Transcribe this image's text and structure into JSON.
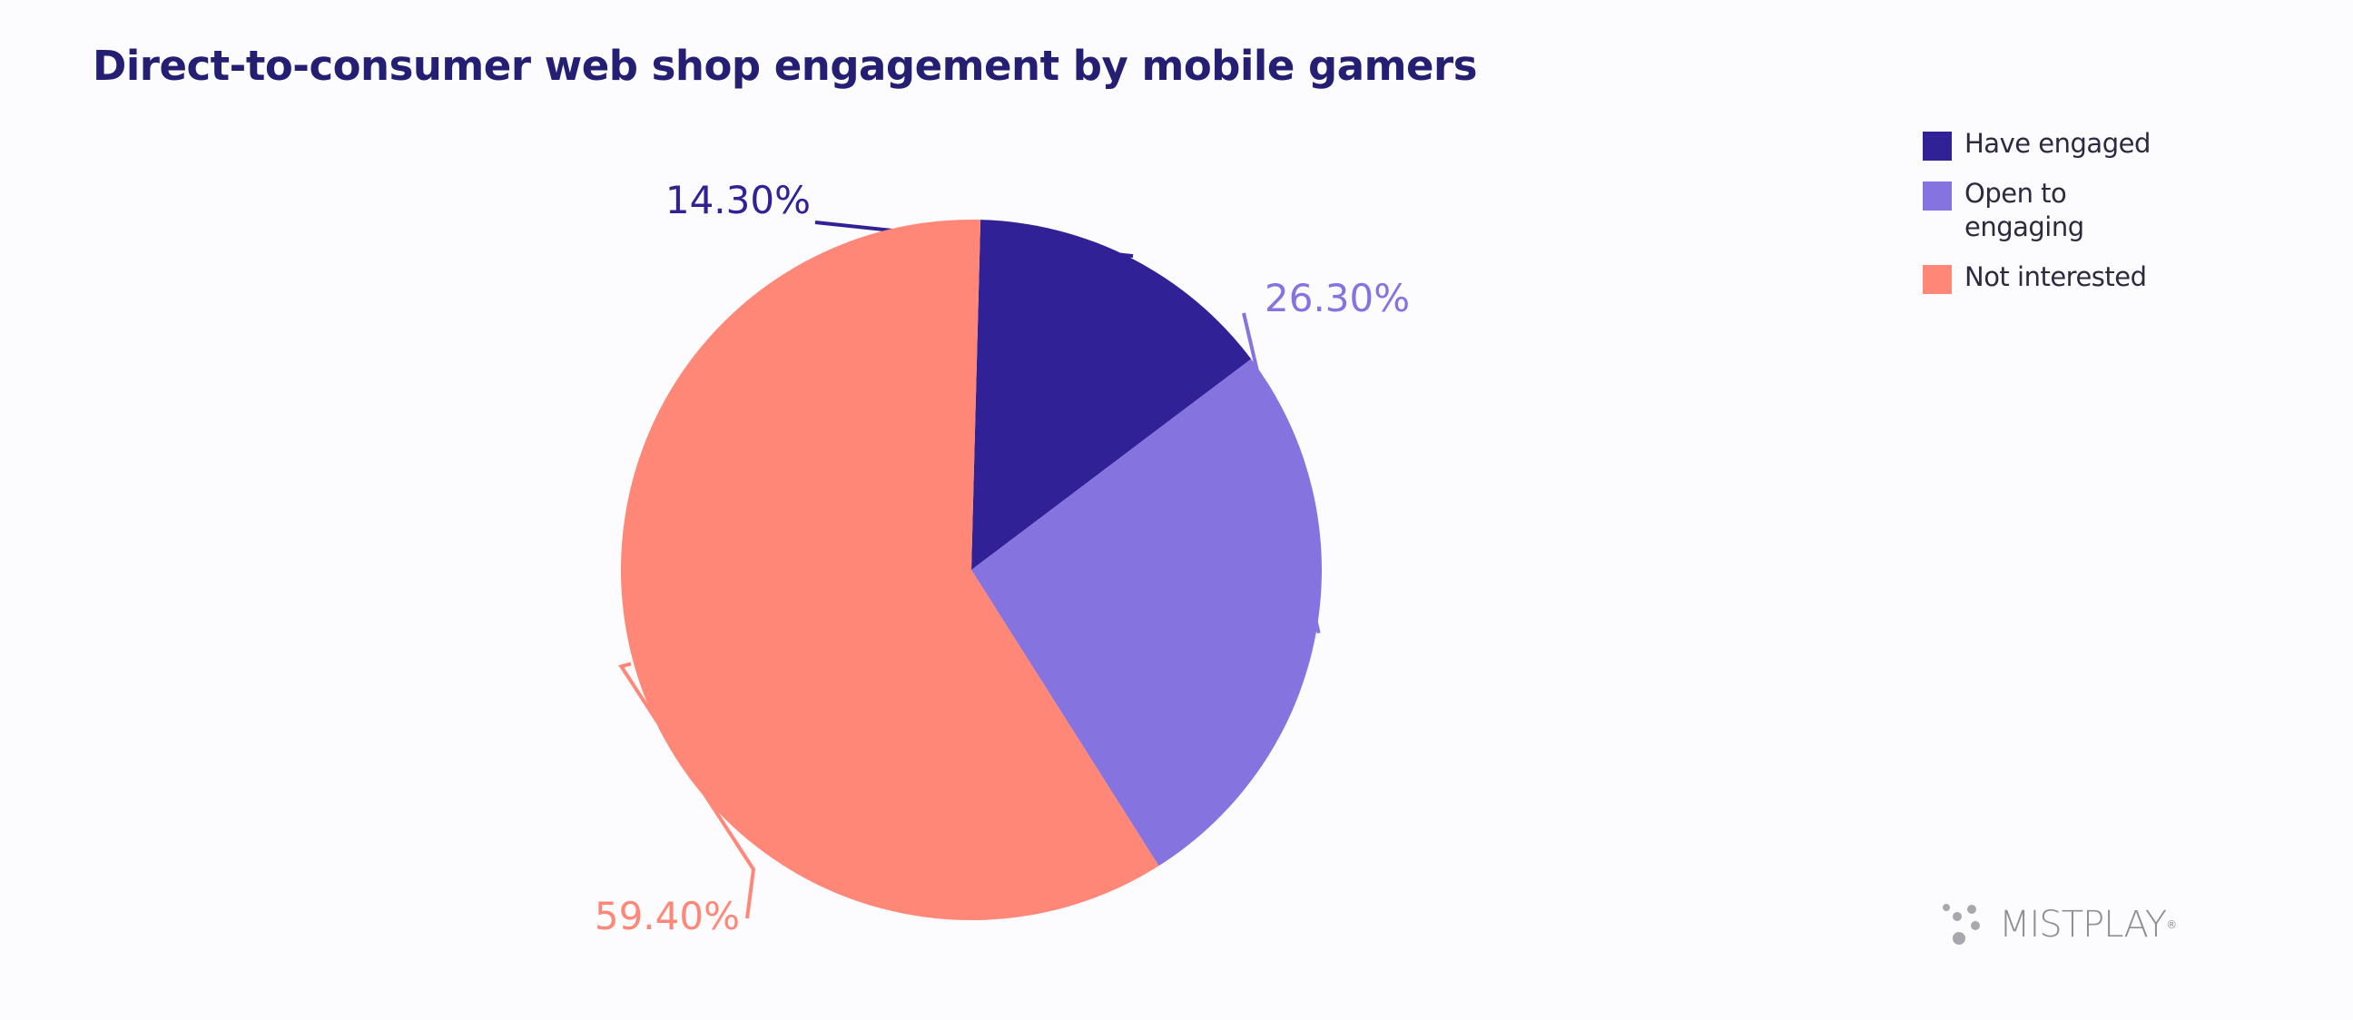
{
  "chart_data": {
    "type": "pie",
    "title": "Direct-to-consumer web shop engagement by mobile gamers",
    "slices": [
      {
        "name": "Have engaged",
        "value": 14.3,
        "label": "14.30%",
        "color": "#312196"
      },
      {
        "name": "Open to engaging",
        "value": 26.3,
        "label": "26.30%",
        "color": "#8573e0"
      },
      {
        "name": "Not interested",
        "value": 59.4,
        "label": "59.40%",
        "color": "#fe8778"
      }
    ],
    "legend": {
      "placement": "top-right",
      "entries": [
        "Have engaged",
        "Open to engaging",
        "Not interested"
      ]
    }
  },
  "logo": {
    "text": "MISTPLAY",
    "mark": "®",
    "color": "#8e8e96"
  }
}
